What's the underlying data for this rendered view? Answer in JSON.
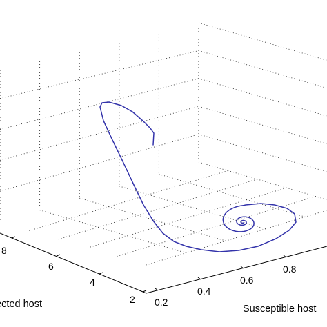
{
  "chart_data": {
    "type": "line",
    "projection": "3d",
    "title": "",
    "xlabel": "Susceptible host",
    "ylabel": "Infected host",
    "zlabel": "",
    "x_ticks": [
      "0.2",
      "0.4",
      "0.6",
      "0.8"
    ],
    "y_ticks": [
      "2",
      "4",
      "6",
      "8"
    ],
    "xlim": [
      0.2,
      1.0
    ],
    "ylim": [
      2,
      10
    ],
    "grid": true,
    "series": [
      {
        "color": "#3333aa",
        "shape": "spiral trajectory converging to an equilibrium",
        "start_point": "upper left hook",
        "equilibrium_point": "center of spiral near Susceptible host 0.75"
      }
    ]
  }
}
